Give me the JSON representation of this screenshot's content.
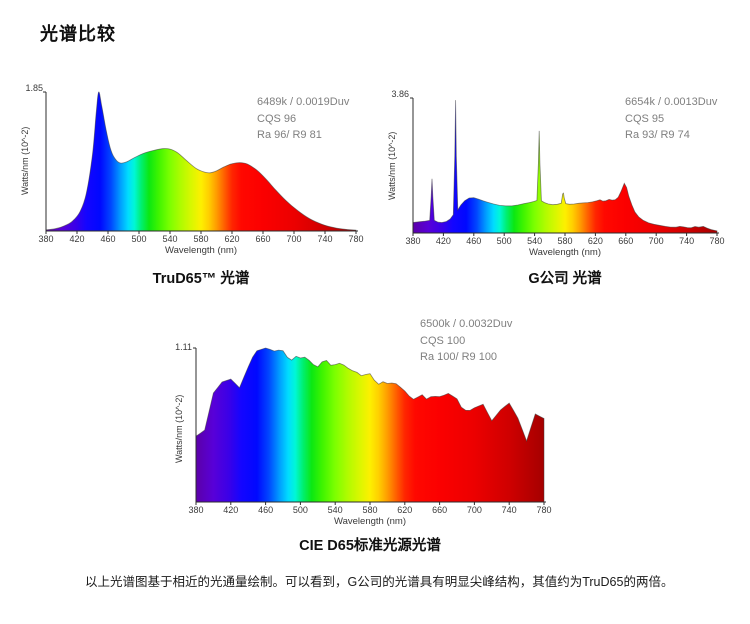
{
  "page": {
    "title": "光谱比较",
    "caption": "以上光谱图基于相近的光通量绘制。可以看到，G公司的光谱具有明显尖峰结构，其值约为TruD65的两倍。"
  },
  "spectrum_colors": [
    [
      380,
      "#5c00a8"
    ],
    [
      400,
      "#5800d8"
    ],
    [
      418,
      "#3a00e8"
    ],
    [
      432,
      "#1405ff"
    ],
    [
      450,
      "#0008ff"
    ],
    [
      464,
      "#0048ff"
    ],
    [
      476,
      "#009dff"
    ],
    [
      486,
      "#00dcff"
    ],
    [
      494,
      "#00f7d7"
    ],
    [
      503,
      "#00ef70"
    ],
    [
      513,
      "#0be812"
    ],
    [
      525,
      "#3ef400"
    ],
    [
      540,
      "#7dff00"
    ],
    [
      555,
      "#b3fb00"
    ],
    [
      568,
      "#daf700"
    ],
    [
      580,
      "#fdf000"
    ],
    [
      590,
      "#ffcf00"
    ],
    [
      600,
      "#ff9c00"
    ],
    [
      610,
      "#ff6000"
    ],
    [
      620,
      "#ff2600"
    ],
    [
      632,
      "#ff0800"
    ],
    [
      660,
      "#fb0000"
    ],
    [
      700,
      "#ec0000"
    ],
    [
      740,
      "#cf0000"
    ],
    [
      780,
      "#a50000"
    ]
  ],
  "chart_data": [
    {
      "type": "area",
      "title": "TruD65™ 光谱",
      "xlabel": "Wavelength (nm)",
      "ylabel": "Watts/nm (10^-2)",
      "ymax_label": "1.85",
      "ylim": [
        0,
        1.85
      ],
      "xlim": [
        380,
        780
      ],
      "xticks": [
        380,
        420,
        460,
        500,
        540,
        580,
        620,
        660,
        700,
        740,
        780
      ],
      "annotation": [
        "6489k / 0.0019Duv",
        "CQS 96",
        "Ra 96/ R9 81"
      ],
      "smooth": true,
      "points": [
        [
          380,
          0.015
        ],
        [
          392,
          0.03
        ],
        [
          404,
          0.07
        ],
        [
          414,
          0.13
        ],
        [
          424,
          0.26
        ],
        [
          432,
          0.5
        ],
        [
          440,
          1.02
        ],
        [
          445,
          1.6
        ],
        [
          448,
          1.85
        ],
        [
          452,
          1.66
        ],
        [
          458,
          1.32
        ],
        [
          464,
          1.07
        ],
        [
          470,
          0.95
        ],
        [
          476,
          0.905
        ],
        [
          484,
          0.92
        ],
        [
          494,
          0.975
        ],
        [
          505,
          1.03
        ],
        [
          518,
          1.07
        ],
        [
          530,
          1.095
        ],
        [
          540,
          1.09
        ],
        [
          550,
          1.04
        ],
        [
          562,
          0.93
        ],
        [
          574,
          0.83
        ],
        [
          584,
          0.785
        ],
        [
          592,
          0.775
        ],
        [
          600,
          0.8
        ],
        [
          610,
          0.855
        ],
        [
          620,
          0.895
        ],
        [
          630,
          0.91
        ],
        [
          640,
          0.89
        ],
        [
          652,
          0.81
        ],
        [
          664,
          0.69
        ],
        [
          676,
          0.55
        ],
        [
          690,
          0.4
        ],
        [
          705,
          0.27
        ],
        [
          720,
          0.165
        ],
        [
          736,
          0.09
        ],
        [
          752,
          0.045
        ],
        [
          766,
          0.022
        ],
        [
          780,
          0.012
        ]
      ]
    },
    {
      "type": "area",
      "title": "G公司 光谱",
      "xlabel": "Wavelength (nm)",
      "ylabel": "Watts/nm (10^-2)",
      "ymax_label": "3.86",
      "ylim": [
        0,
        3.86
      ],
      "xlim": [
        380,
        780
      ],
      "xticks": [
        380,
        420,
        460,
        500,
        540,
        580,
        620,
        660,
        700,
        740,
        780
      ],
      "annotation": [
        "6654k / 0.0013Duv",
        "CQS 95",
        "Ra 93/ R9 74"
      ],
      "smooth": false,
      "points": [
        [
          380,
          0.3
        ],
        [
          388,
          0.32
        ],
        [
          396,
          0.34
        ],
        [
          402,
          0.36
        ],
        [
          404,
          1.05
        ],
        [
          405,
          1.55
        ],
        [
          406,
          1.05
        ],
        [
          408,
          0.36
        ],
        [
          413,
          0.31
        ],
        [
          418,
          0.3
        ],
        [
          424,
          0.33
        ],
        [
          429,
          0.4
        ],
        [
          433,
          0.52
        ],
        [
          435,
          2.2
        ],
        [
          436,
          3.8
        ],
        [
          437,
          2.2
        ],
        [
          439,
          0.66
        ],
        [
          443,
          0.8
        ],
        [
          448,
          0.92
        ],
        [
          454,
          1.0
        ],
        [
          460,
          1.01
        ],
        [
          466,
          0.97
        ],
        [
          472,
          0.92
        ],
        [
          478,
          0.88
        ],
        [
          486,
          0.83
        ],
        [
          494,
          0.79
        ],
        [
          502,
          0.775
        ],
        [
          510,
          0.775
        ],
        [
          518,
          0.8
        ],
        [
          526,
          0.84
        ],
        [
          533,
          0.87
        ],
        [
          539,
          0.9
        ],
        [
          543,
          0.93
        ],
        [
          545,
          2.0
        ],
        [
          546,
          2.92
        ],
        [
          547,
          2.0
        ],
        [
          549,
          0.92
        ],
        [
          553,
          0.87
        ],
        [
          558,
          0.83
        ],
        [
          564,
          0.81
        ],
        [
          570,
          0.82
        ],
        [
          575,
          0.85
        ],
        [
          577,
          1.12
        ],
        [
          578,
          1.14
        ],
        [
          579,
          1.0
        ],
        [
          581,
          0.84
        ],
        [
          586,
          0.82
        ],
        [
          592,
          0.83
        ],
        [
          598,
          0.85
        ],
        [
          604,
          0.86
        ],
        [
          610,
          0.87
        ],
        [
          616,
          0.89
        ],
        [
          622,
          0.92
        ],
        [
          626,
          0.95
        ],
        [
          630,
          0.91
        ],
        [
          634,
          0.92
        ],
        [
          638,
          0.96
        ],
        [
          642,
          0.94
        ],
        [
          646,
          0.95
        ],
        [
          650,
          1.02
        ],
        [
          654,
          1.2
        ],
        [
          658,
          1.42
        ],
        [
          661,
          1.3
        ],
        [
          664,
          1.05
        ],
        [
          668,
          0.8
        ],
        [
          672,
          0.6
        ],
        [
          677,
          0.46
        ],
        [
          683,
          0.36
        ],
        [
          690,
          0.29
        ],
        [
          697,
          0.25
        ],
        [
          704,
          0.22
        ],
        [
          712,
          0.19
        ],
        [
          719,
          0.17
        ],
        [
          726,
          0.165
        ],
        [
          731,
          0.19
        ],
        [
          736,
          0.175
        ],
        [
          741,
          0.155
        ],
        [
          746,
          0.15
        ],
        [
          751,
          0.185
        ],
        [
          756,
          0.165
        ],
        [
          762,
          0.19
        ],
        [
          767,
          0.14
        ],
        [
          772,
          0.1
        ],
        [
          780,
          0.06
        ]
      ]
    },
    {
      "type": "area",
      "title": "CIE D65标准光源光谱",
      "xlabel": "Wavelength (nm)",
      "ylabel": "Watts/nm (10^-2)",
      "ymax_label": "1.11",
      "ylim": [
        0,
        1.11
      ],
      "xlim": [
        380,
        780
      ],
      "xticks": [
        380,
        420,
        460,
        500,
        540,
        580,
        620,
        660,
        700,
        740,
        780
      ],
      "annotation": [
        "6500k / 0.0032Duv",
        "CQS 100",
        "Ra 100/ R9 100"
      ],
      "smooth": false,
      "points": [
        [
          380,
          0.474
        ],
        [
          385,
          0.496
        ],
        [
          390,
          0.518
        ],
        [
          395,
          0.65
        ],
        [
          400,
          0.786
        ],
        [
          405,
          0.825
        ],
        [
          410,
          0.865
        ],
        [
          415,
          0.876
        ],
        [
          420,
          0.886
        ],
        [
          425,
          0.855
        ],
        [
          430,
          0.823
        ],
        [
          435,
          0.898
        ],
        [
          440,
          0.973
        ],
        [
          445,
          1.044
        ],
        [
          450,
          1.09
        ],
        [
          455,
          1.1
        ],
        [
          460,
          1.11
        ],
        [
          465,
          1.1
        ],
        [
          470,
          1.088
        ],
        [
          475,
          1.095
        ],
        [
          480,
          1.09
        ],
        [
          485,
          1.042
        ],
        [
          490,
          1.023
        ],
        [
          495,
          1.05
        ],
        [
          500,
          1.038
        ],
        [
          505,
          1.044
        ],
        [
          510,
          1.021
        ],
        [
          515,
          0.99
        ],
        [
          520,
          0.974
        ],
        [
          525,
          1.01
        ],
        [
          530,
          1.02
        ],
        [
          535,
          0.985
        ],
        [
          540,
          0.99
        ],
        [
          545,
          1.0
        ],
        [
          550,
          0.987
        ],
        [
          555,
          0.963
        ],
        [
          560,
          0.946
        ],
        [
          565,
          0.934
        ],
        [
          570,
          0.91
        ],
        [
          575,
          0.919
        ],
        [
          580,
          0.925
        ],
        [
          585,
          0.878
        ],
        [
          590,
          0.848
        ],
        [
          595,
          0.867
        ],
        [
          600,
          0.854
        ],
        [
          605,
          0.858
        ],
        [
          610,
          0.853
        ],
        [
          615,
          0.827
        ],
        [
          620,
          0.8
        ],
        [
          625,
          0.763
        ],
        [
          630,
          0.74
        ],
        [
          635,
          0.756
        ],
        [
          640,
          0.773
        ],
        [
          645,
          0.742
        ],
        [
          650,
          0.759
        ],
        [
          655,
          0.761
        ],
        [
          660,
          0.76
        ],
        [
          665,
          0.77
        ],
        [
          670,
          0.783
        ],
        [
          675,
          0.763
        ],
        [
          680,
          0.743
        ],
        [
          685,
          0.683
        ],
        [
          690,
          0.661
        ],
        [
          695,
          0.66
        ],
        [
          700,
          0.679
        ],
        [
          705,
          0.692
        ],
        [
          710,
          0.705
        ],
        [
          715,
          0.645
        ],
        [
          720,
          0.585
        ],
        [
          725,
          0.624
        ],
        [
          730,
          0.663
        ],
        [
          735,
          0.688
        ],
        [
          740,
          0.713
        ],
        [
          745,
          0.659
        ],
        [
          750,
          0.604
        ],
        [
          755,
          0.522
        ],
        [
          760,
          0.44
        ],
        [
          765,
          0.537
        ],
        [
          770,
          0.634
        ],
        [
          775,
          0.618
        ],
        [
          780,
          0.602
        ]
      ]
    }
  ]
}
